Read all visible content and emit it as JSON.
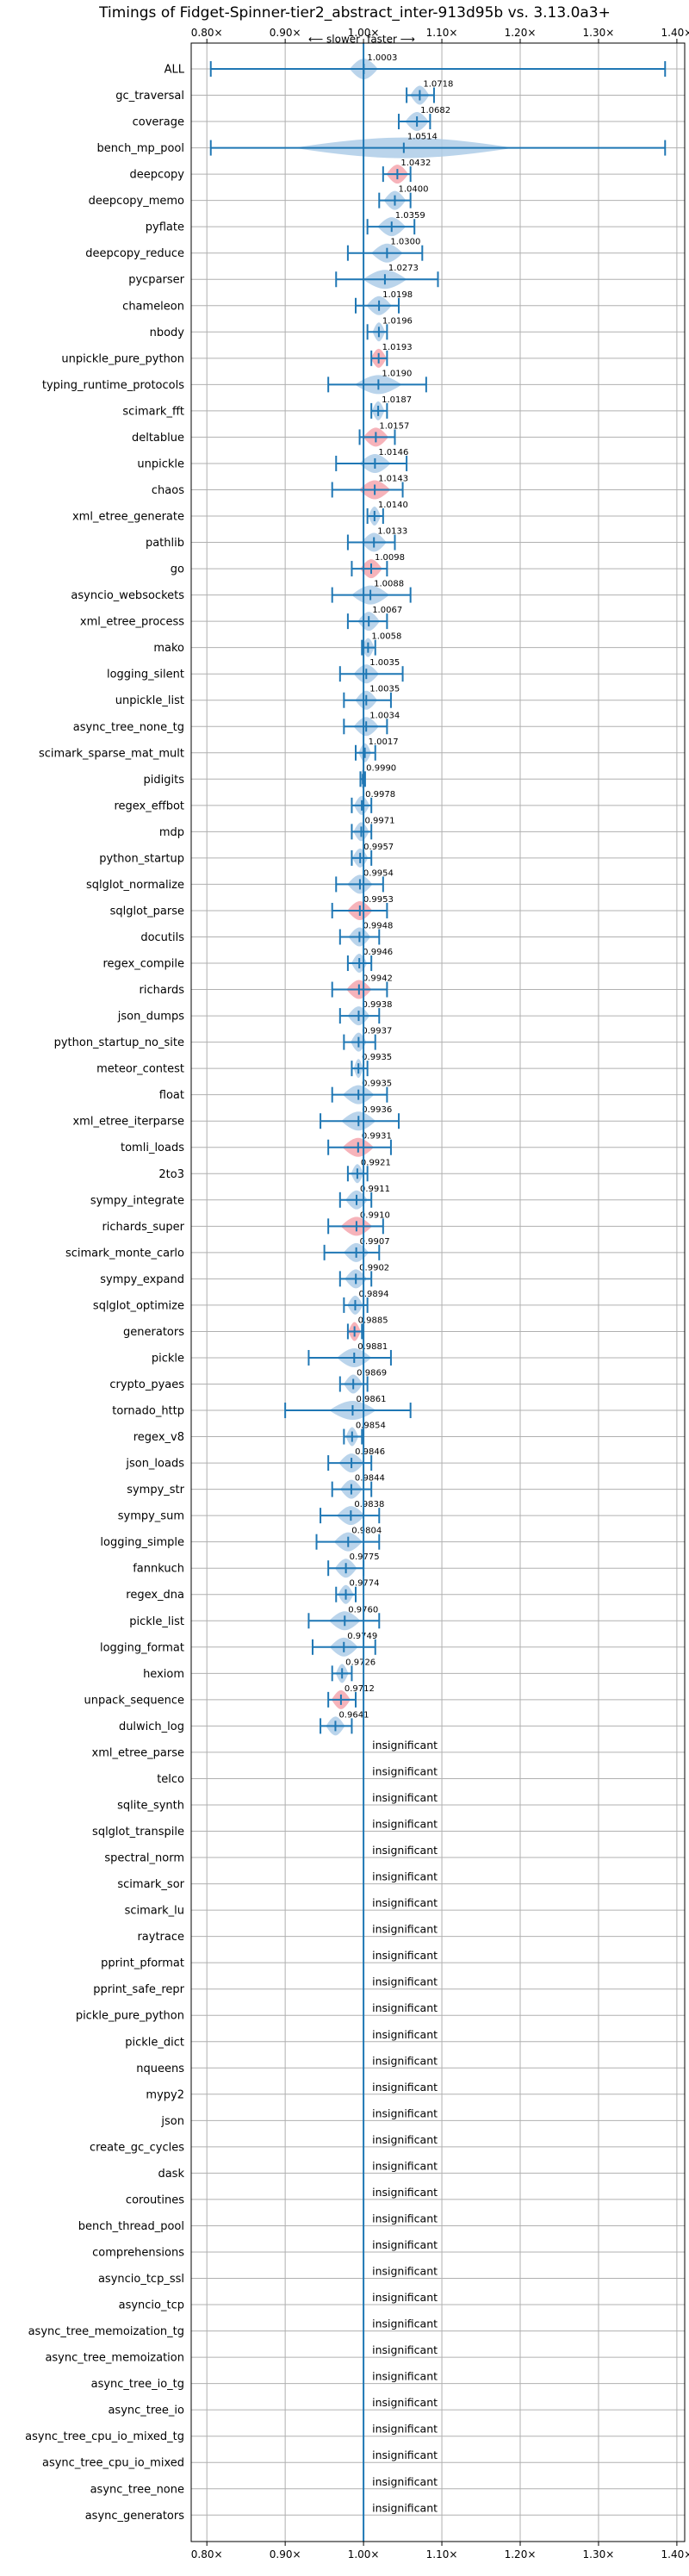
{
  "chart_data": {
    "type": "violin",
    "title": "Timings of Fidget-Spinner-tier2_abstract_inter-913d95b vs. 3.13.0a3+",
    "direction_labels": {
      "slower": "⟵ slower",
      "faster": "faster ⟶"
    },
    "xlim": [
      0.78,
      1.41
    ],
    "xticks": [
      0.8,
      0.9,
      1.0,
      1.1,
      1.2,
      1.3,
      1.4
    ],
    "xtick_labels": [
      "0.80×",
      "0.90×",
      "1.00×",
      "1.10×",
      "1.20×",
      "1.30×",
      "1.40×"
    ],
    "reference_line": 1.0,
    "colors": {
      "faster": "#aecde8",
      "slower": "#f4a6ae",
      "line": "#1f77b4"
    },
    "insignificant_label": "insignificant",
    "benchmarks": [
      {
        "name": "ALL",
        "value": 1.0003,
        "label": "1.0003",
        "lo": 0.805,
        "hi": 1.385,
        "spread": 0.018
      },
      {
        "name": "gc_traversal",
        "value": 1.0718,
        "label": "1.0718",
        "lo": 1.055,
        "hi": 1.09,
        "spread": 0.012
      },
      {
        "name": "coverage",
        "value": 1.0682,
        "label": "1.0682",
        "lo": 1.045,
        "hi": 1.085,
        "spread": 0.015
      },
      {
        "name": "bench_mp_pool",
        "value": 1.0514,
        "label": "1.0514",
        "lo": 0.805,
        "hi": 1.385,
        "spread": 0.14
      },
      {
        "name": "deepcopy",
        "value": 1.0432,
        "label": "1.0432",
        "lo": 1.025,
        "hi": 1.06,
        "spread": 0.014
      },
      {
        "name": "deepcopy_memo",
        "value": 1.04,
        "label": "1.0400",
        "lo": 1.02,
        "hi": 1.06,
        "spread": 0.014
      },
      {
        "name": "pyflate",
        "value": 1.0359,
        "label": "1.0359",
        "lo": 1.005,
        "hi": 1.065,
        "spread": 0.018
      },
      {
        "name": "deepcopy_reduce",
        "value": 1.03,
        "label": "1.0300",
        "lo": 0.98,
        "hi": 1.075,
        "spread": 0.02
      },
      {
        "name": "pycparser",
        "value": 1.0273,
        "label": "1.0273",
        "lo": 0.965,
        "hi": 1.095,
        "spread": 0.028
      },
      {
        "name": "chameleon",
        "value": 1.0198,
        "label": "1.0198",
        "lo": 0.99,
        "hi": 1.045,
        "spread": 0.016
      },
      {
        "name": "nbody",
        "value": 1.0196,
        "label": "1.0196",
        "lo": 1.005,
        "hi": 1.03,
        "spread": 0.008
      },
      {
        "name": "unpickle_pure_python",
        "value": 1.0193,
        "label": "1.0193",
        "lo": 1.01,
        "hi": 1.03,
        "spread": 0.01
      },
      {
        "name": "typing_runtime_protocols",
        "value": 1.019,
        "label": "1.0190",
        "lo": 0.955,
        "hi": 1.08,
        "spread": 0.03
      },
      {
        "name": "scimark_fft",
        "value": 1.0187,
        "label": "1.0187",
        "lo": 1.01,
        "hi": 1.03,
        "spread": 0.008
      },
      {
        "name": "deltablue",
        "value": 1.0157,
        "label": "1.0157",
        "lo": 0.995,
        "hi": 1.04,
        "spread": 0.016
      },
      {
        "name": "unpickle",
        "value": 1.0146,
        "label": "1.0146",
        "lo": 0.965,
        "hi": 1.055,
        "spread": 0.02
      },
      {
        "name": "chaos",
        "value": 1.0143,
        "label": "1.0143",
        "lo": 0.96,
        "hi": 1.05,
        "spread": 0.02
      },
      {
        "name": "xml_etree_generate",
        "value": 1.014,
        "label": "1.0140",
        "lo": 1.005,
        "hi": 1.025,
        "spread": 0.008
      },
      {
        "name": "pathlib",
        "value": 1.0133,
        "label": "1.0133",
        "lo": 0.98,
        "hi": 1.04,
        "spread": 0.016
      },
      {
        "name": "go",
        "value": 1.0098,
        "label": "1.0098",
        "lo": 0.985,
        "hi": 1.03,
        "spread": 0.014
      },
      {
        "name": "asyncio_websockets",
        "value": 1.0088,
        "label": "1.0088",
        "lo": 0.96,
        "hi": 1.06,
        "spread": 0.024
      },
      {
        "name": "xml_etree_process",
        "value": 1.0067,
        "label": "1.0067",
        "lo": 0.98,
        "hi": 1.03,
        "spread": 0.014
      },
      {
        "name": "mako",
        "value": 1.0058,
        "label": "1.0058",
        "lo": 0.998,
        "hi": 1.015,
        "spread": 0.008
      },
      {
        "name": "logging_silent",
        "value": 1.0035,
        "label": "1.0035",
        "lo": 0.97,
        "hi": 1.05,
        "spread": 0.016
      },
      {
        "name": "unpickle_list",
        "value": 1.0035,
        "label": "1.0035",
        "lo": 0.975,
        "hi": 1.035,
        "spread": 0.014
      },
      {
        "name": "async_tree_none_tg",
        "value": 1.0034,
        "label": "1.0034",
        "lo": 0.975,
        "hi": 1.03,
        "spread": 0.016
      },
      {
        "name": "scimark_sparse_mat_mult",
        "value": 1.0017,
        "label": "1.0017",
        "lo": 0.99,
        "hi": 1.015,
        "spread": 0.008
      },
      {
        "name": "pidigits",
        "value": 0.999,
        "label": "0.9990",
        "lo": 0.996,
        "hi": 1.002,
        "spread": 0.004
      },
      {
        "name": "regex_effbot",
        "value": 0.9978,
        "label": "0.9978",
        "lo": 0.985,
        "hi": 1.01,
        "spread": 0.01
      },
      {
        "name": "mdp",
        "value": 0.9971,
        "label": "0.9971",
        "lo": 0.985,
        "hi": 1.01,
        "spread": 0.01
      },
      {
        "name": "python_startup",
        "value": 0.9957,
        "label": "0.9957",
        "lo": 0.985,
        "hi": 1.01,
        "spread": 0.01
      },
      {
        "name": "sqlglot_normalize",
        "value": 0.9954,
        "label": "0.9954",
        "lo": 0.965,
        "hi": 1.025,
        "spread": 0.016
      },
      {
        "name": "sqlglot_parse",
        "value": 0.9953,
        "label": "0.9953",
        "lo": 0.96,
        "hi": 1.03,
        "spread": 0.016
      },
      {
        "name": "docutils",
        "value": 0.9948,
        "label": "0.9948",
        "lo": 0.97,
        "hi": 1.02,
        "spread": 0.014
      },
      {
        "name": "regex_compile",
        "value": 0.9946,
        "label": "0.9946",
        "lo": 0.98,
        "hi": 1.01,
        "spread": 0.01
      },
      {
        "name": "richards",
        "value": 0.9942,
        "label": "0.9942",
        "lo": 0.96,
        "hi": 1.03,
        "spread": 0.016
      },
      {
        "name": "json_dumps",
        "value": 0.9938,
        "label": "0.9938",
        "lo": 0.97,
        "hi": 1.02,
        "spread": 0.014
      },
      {
        "name": "python_startup_no_site",
        "value": 0.9937,
        "label": "0.9937",
        "lo": 0.975,
        "hi": 1.015,
        "spread": 0.01
      },
      {
        "name": "meteor_contest",
        "value": 0.9935,
        "label": "0.9935",
        "lo": 0.985,
        "hi": 1.005,
        "spread": 0.006
      },
      {
        "name": "float",
        "value": 0.9935,
        "label": "0.9935",
        "lo": 0.96,
        "hi": 1.03,
        "spread": 0.02
      },
      {
        "name": "xml_etree_iterparse",
        "value": 0.9936,
        "label": "0.9936",
        "lo": 0.945,
        "hi": 1.045,
        "spread": 0.022
      },
      {
        "name": "tomli_loads",
        "value": 0.9931,
        "label": "0.9931",
        "lo": 0.955,
        "hi": 1.035,
        "spread": 0.02
      },
      {
        "name": "2to3",
        "value": 0.9921,
        "label": "0.9921",
        "lo": 0.98,
        "hi": 1.005,
        "spread": 0.008
      },
      {
        "name": "sympy_integrate",
        "value": 0.9911,
        "label": "0.9911",
        "lo": 0.97,
        "hi": 1.01,
        "spread": 0.014
      },
      {
        "name": "richards_super",
        "value": 0.991,
        "label": "0.9910",
        "lo": 0.955,
        "hi": 1.025,
        "spread": 0.02
      },
      {
        "name": "scimark_monte_carlo",
        "value": 0.9907,
        "label": "0.9907",
        "lo": 0.95,
        "hi": 1.02,
        "spread": 0.016
      },
      {
        "name": "sympy_expand",
        "value": 0.9902,
        "label": "0.9902",
        "lo": 0.97,
        "hi": 1.01,
        "spread": 0.014
      },
      {
        "name": "sqlglot_optimize",
        "value": 0.9894,
        "label": "0.9894",
        "lo": 0.975,
        "hi": 1.005,
        "spread": 0.01
      },
      {
        "name": "generators",
        "value": 0.9885,
        "label": "0.9885",
        "lo": 0.98,
        "hi": 0.998,
        "spread": 0.008
      },
      {
        "name": "pickle",
        "value": 0.9881,
        "label": "0.9881",
        "lo": 0.93,
        "hi": 1.035,
        "spread": 0.022
      },
      {
        "name": "crypto_pyaes",
        "value": 0.9869,
        "label": "0.9869",
        "lo": 0.97,
        "hi": 1.005,
        "spread": 0.012
      },
      {
        "name": "tornado_http",
        "value": 0.9861,
        "label": "0.9861",
        "lo": 0.9,
        "hi": 1.06,
        "spread": 0.03
      },
      {
        "name": "regex_v8",
        "value": 0.9854,
        "label": "0.9854",
        "lo": 0.975,
        "hi": 0.998,
        "spread": 0.008
      },
      {
        "name": "json_loads",
        "value": 0.9846,
        "label": "0.9846",
        "lo": 0.955,
        "hi": 1.01,
        "spread": 0.016
      },
      {
        "name": "sympy_str",
        "value": 0.9844,
        "label": "0.9844",
        "lo": 0.96,
        "hi": 1.01,
        "spread": 0.014
      },
      {
        "name": "sympy_sum",
        "value": 0.9838,
        "label": "0.9838",
        "lo": 0.945,
        "hi": 1.02,
        "spread": 0.018
      },
      {
        "name": "logging_simple",
        "value": 0.9804,
        "label": "0.9804",
        "lo": 0.94,
        "hi": 1.02,
        "spread": 0.018
      },
      {
        "name": "fannkuch",
        "value": 0.9775,
        "label": "0.9775",
        "lo": 0.955,
        "hi": 1.0,
        "spread": 0.014
      },
      {
        "name": "regex_dna",
        "value": 0.9774,
        "label": "0.9774",
        "lo": 0.965,
        "hi": 0.99,
        "spread": 0.01
      },
      {
        "name": "pickle_list",
        "value": 0.976,
        "label": "0.9760",
        "lo": 0.93,
        "hi": 1.02,
        "spread": 0.02
      },
      {
        "name": "logging_format",
        "value": 0.9749,
        "label": "0.9749",
        "lo": 0.935,
        "hi": 1.015,
        "spread": 0.018
      },
      {
        "name": "hexiom",
        "value": 0.9726,
        "label": "0.9726",
        "lo": 0.96,
        "hi": 0.985,
        "spread": 0.008
      },
      {
        "name": "unpack_sequence",
        "value": 0.9712,
        "label": "0.9712",
        "lo": 0.955,
        "hi": 0.99,
        "spread": 0.012
      },
      {
        "name": "dulwich_log",
        "value": 0.9641,
        "label": "0.9641",
        "lo": 0.945,
        "hi": 0.985,
        "spread": 0.012
      }
    ],
    "insignificant_benchmarks": [
      "xml_etree_parse",
      "telco",
      "sqlite_synth",
      "sqlglot_transpile",
      "spectral_norm",
      "scimark_sor",
      "scimark_lu",
      "raytrace",
      "pprint_pformat",
      "pprint_safe_repr",
      "pickle_pure_python",
      "pickle_dict",
      "nqueens",
      "mypy2",
      "json",
      "create_gc_cycles",
      "dask",
      "coroutines",
      "bench_thread_pool",
      "comprehensions",
      "asyncio_tcp_ssl",
      "asyncio_tcp",
      "async_tree_memoization_tg",
      "async_tree_memoization",
      "async_tree_io_tg",
      "async_tree_io",
      "async_tree_cpu_io_mixed_tg",
      "async_tree_cpu_io_mixed",
      "async_tree_none",
      "async_generators"
    ],
    "highlighted_slower": [
      "deepcopy",
      "unpickle_pure_python",
      "deltablue",
      "chaos",
      "go",
      "sqlglot_parse",
      "richards",
      "tomli_loads",
      "richards_super",
      "generators",
      "unpack_sequence"
    ]
  }
}
